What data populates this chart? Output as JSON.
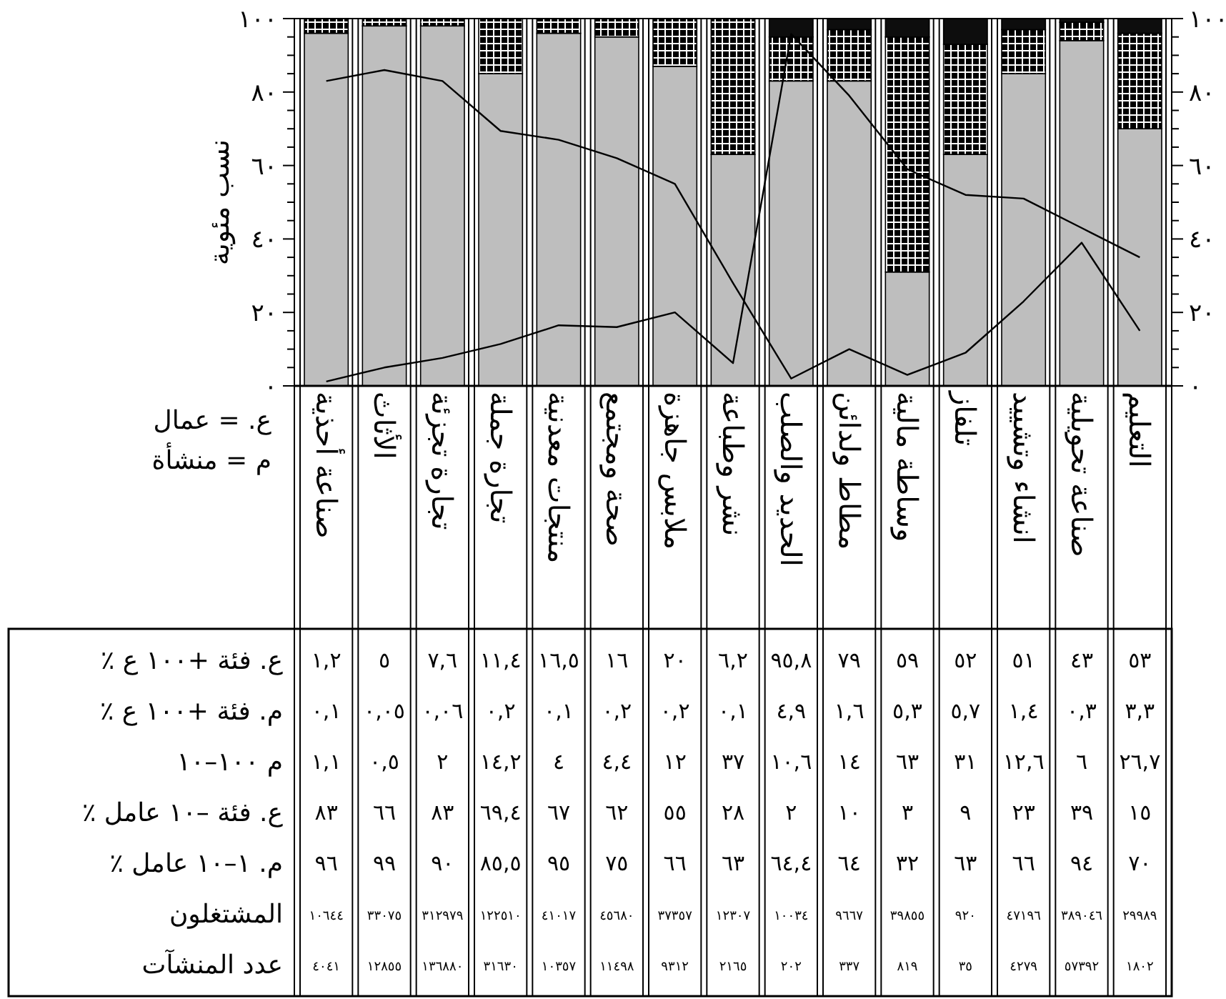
{
  "chart_data": [
    {
      "type": "bar",
      "stacked": true,
      "ylabel": "نسب مئوية",
      "categories": [
        null,
        null,
        null,
        null,
        null,
        null,
        null,
        null,
        null,
        null,
        null,
        null,
        null,
        null,
        null
      ],
      "series": [
        {
          "type": "bar",
          "color": "#bebebe",
          "values": [
            96,
            98,
            98,
            85,
            96,
            95,
            87,
            63,
            83,
            83,
            31,
            63,
            85,
            94,
            70
          ]
        },
        {
          "type": "bar",
          "color": "#000000",
          "values": [
            4,
            2,
            2,
            15,
            4,
            5,
            13,
            37,
            12,
            14,
            64,
            30,
            12,
            5,
            26
          ]
        },
        {
          "type": "bar",
          "color": "#0d0d0d",
          "values": [
            0,
            0,
            0,
            0,
            0,
            0,
            0,
            0,
            5,
            3,
            5,
            7,
            3,
            1,
            4
          ]
        },
        {
          "type": "line",
          "color": "#000000",
          "values": [
            83,
            86,
            83,
            69.4,
            67,
            62,
            55,
            28,
            2,
            10,
            3,
            9,
            23,
            39,
            15
          ]
        },
        {
          "type": "line",
          "color": "#000000",
          "values": [
            1.2,
            5,
            7.6,
            11.4,
            16.5,
            16,
            20,
            6.2,
            95.8,
            79,
            59,
            52,
            51,
            43,
            35
          ]
        }
      ],
      "ylim": [
        0,
        100
      ],
      "yticks": [
        {
          "value": 0,
          "label": "٠"
        },
        {
          "value": 20,
          "label": "٢٠"
        },
        {
          "value": 40,
          "label": "٤٠"
        },
        {
          "value": 60,
          "label": "٦٠"
        },
        {
          "value": 80,
          "label": "٨٠"
        },
        {
          "value": 100,
          "label": "١٠٠"
        }
      ],
      "y2lim": [
        0,
        100
      ],
      "y2ticks": [
        {
          "value": 0,
          "label": "٠"
        },
        {
          "value": 20,
          "label": "٢٠"
        },
        {
          "value": 40,
          "label": "٤٠"
        },
        {
          "value": 60,
          "label": "٦٠"
        },
        {
          "value": 80,
          "label": "٨٠"
        },
        {
          "value": 100,
          "label": "١٠٠"
        }
      ],
      "annotations": [
        "ع. = عمال",
        "م = منشأة"
      ]
    },
    {
      "type": "other",
      "categories": [
        "صناعة أحذية",
        "الأثاث",
        "تجارة تجزئة",
        "تجارة جملة",
        "منتجات معدنية",
        "صحة ومجتمع",
        "ملابس جاهزة",
        "نشر وطباعة",
        "الحديد والصلب",
        "مطاط ولدائن",
        "وساطة مالية",
        "تلفاز",
        "انشاء وتشييد",
        "صناعة تحويلية",
        "التعليم"
      ],
      "series": [
        {
          "name": "ع. فئة +١٠٠ ع ٪",
          "values": [
            1.2,
            5,
            7.6,
            11.4,
            16.5,
            16,
            20,
            6.2,
            95.8,
            79,
            59,
            52,
            51,
            43,
            53
          ],
          "value_labels": [
            "١,٢",
            "٥",
            "٧,٦",
            "١١,٤",
            "١٦,٥",
            "١٦",
            "٢٠",
            "٦,٢",
            "٩٥,٨",
            "٧٩",
            "٥٩",
            "٥٢",
            "٥١",
            "٤٣",
            "٥٣"
          ]
        },
        {
          "name": "م. فئة +١٠٠ ع ٪",
          "values": [
            0.1,
            0.05,
            0.06,
            0.2,
            0.1,
            0.2,
            0.2,
            0.1,
            4.9,
            1.6,
            5.3,
            5.7,
            1.4,
            0.3,
            3.3
          ],
          "value_labels": [
            "٠,١",
            "٠,٠٥",
            "٠,٠٦",
            "٠,٢",
            "٠,١",
            "٠,٢",
            "٠,٢",
            "٠,١",
            "٤,٩",
            "١,٦",
            "٥,٣",
            "٥,٧",
            "١,٤",
            "٠,٣",
            "٣,٣"
          ]
        },
        {
          "name": "م ١٠٠–١٠",
          "values": [
            1.1,
            0.5,
            2,
            14.2,
            4,
            4.4,
            12,
            37,
            10.6,
            14,
            63,
            31,
            12.6,
            6,
            26.7
          ],
          "value_labels": [
            "١,١",
            "٠,٥",
            "٢",
            "١٤,٢",
            "٤",
            "٤,٤",
            "١٢",
            "٣٧",
            "١٠,٦",
            "١٤",
            "٦٣",
            "٣١",
            "١٢,٦",
            "٦",
            "٢٦,٧"
          ]
        },
        {
          "name": "ع. فئة –١٠ عامل ٪",
          "values": [
            83,
            66,
            83,
            69.4,
            67,
            62,
            55,
            28,
            2,
            10,
            3,
            9,
            23,
            39,
            15
          ],
          "value_labels": [
            "٨٣",
            "٦٦",
            "٨٣",
            "٦٩,٤",
            "٦٧",
            "٦٢",
            "٥٥",
            "٢٨",
            "٢",
            "١٠",
            "٣",
            "٩",
            "٢٣",
            "٣٩",
            "١٥"
          ]
        },
        {
          "name": "م. ١–١٠ عامل ٪",
          "values": [
            96,
            99,
            90,
            85.5,
            95,
            75,
            66,
            63,
            64.4,
            64,
            32,
            63,
            66,
            94,
            70
          ],
          "value_labels": [
            "٩٦",
            "٩٩",
            "٩٠",
            "٨٥,٥",
            "٩٥",
            "٧٥",
            "٦٦",
            "٦٣",
            "٦٤,٤",
            "٦٤",
            "٣٢",
            "٦٣",
            "٦٦",
            "٩٤",
            "٧٠"
          ]
        },
        {
          "name": "المشتغلون",
          "values": [
            10644,
            33075,
            312979,
            122510,
            41017,
            45680,
            37357,
            12307,
            10034,
            9667,
            39855,
            920,
            47196,
            389046,
            29989
          ],
          "value_labels": [
            "١٠٦٤٤",
            "٣٣٠٧٥",
            "٣١٢٩٧٩",
            "١٢٢٥١٠",
            "٤١٠١٧",
            "٤٥٦٨٠",
            "٣٧٣٥٧",
            "١٢٣٠٧",
            "١٠٠٣٤",
            "٩٦٦٧",
            "٣٩٨٥٥",
            "٩٢٠",
            "٤٧١٩٦",
            "٣٨٩٠٤٦",
            "٢٩٩٨٩"
          ]
        },
        {
          "name": "عدد المنشآت",
          "values": [
            4041,
            12855,
            136880,
            31630,
            10357,
            11498,
            9312,
            2165,
            202,
            337,
            819,
            35,
            4279,
            57392,
            1802
          ],
          "value_labels": [
            "٤٠٤١",
            "١٢٨٥٥",
            "١٣٦٨٨٠",
            "٣١٦٣٠",
            "١٠٣٥٧",
            "١١٤٩٨",
            "٩٣١٢",
            "٢١٦٥",
            "٢٠٢",
            "٣٣٧",
            "٨١٩",
            "٣٥",
            "٤٢٧٩",
            "٥٧٣٩٢",
            "١٨٠٢"
          ]
        }
      ]
    }
  ]
}
